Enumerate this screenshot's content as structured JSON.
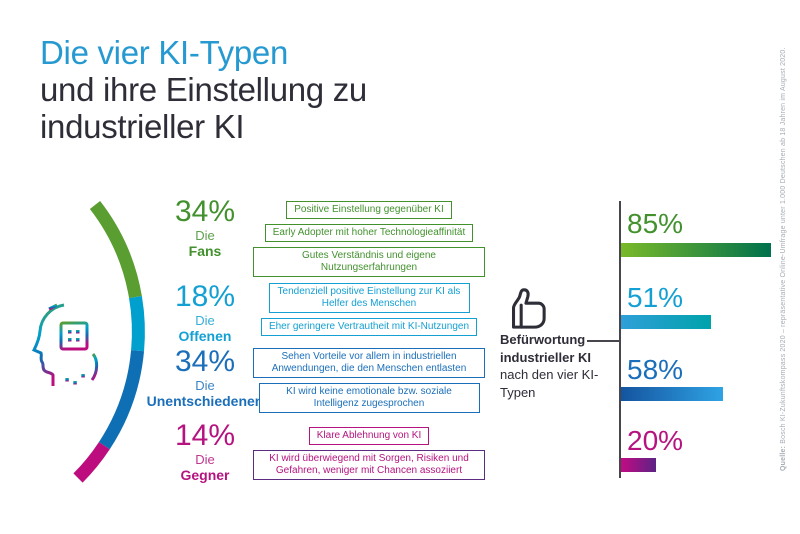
{
  "header": {
    "title_accent": "Die vier KI-Typen",
    "title_rest_line1": "und ihre Einstellung zu",
    "title_rest_line2": "industrieller KI"
  },
  "groups": [
    {
      "pct": "34%",
      "prefix": "Die",
      "name": "Fans",
      "color": "#42912d",
      "boxes": [
        "Positive Einstellung gegenüber KI",
        "Early Adopter mit hoher Technologieaffinität",
        "Gutes Verständnis und eigene Nutzungserfahrungen"
      ]
    },
    {
      "pct": "18%",
      "prefix": "Die",
      "name": "Offenen",
      "color": "#14a0d3",
      "boxes": [
        "Tendenziell positive Einstellung zur KI als Helfer des Menschen",
        "Eher geringere Vertrautheit mit KI-Nutzungen"
      ]
    },
    {
      "pct": "34%",
      "prefix": "Die",
      "name": "Unentschiedenen",
      "color": "#1b6fba",
      "boxes": [
        "Sehen Vorteile vor allem in industriellen Anwendungen, die den Menschen entlasten",
        "KI wird keine emotionale bzw. soziale Intelligenz zugesprochen"
      ]
    },
    {
      "pct": "14%",
      "prefix": "Die",
      "name": "Gegner",
      "color": "#b5137f",
      "boxes": [
        "Klare Ablehnung von KI",
        "KI wird überwiegend mit Sorgen, Risiken und Gefahren, weniger mit Chancen assoziiert"
      ]
    }
  ],
  "approval": {
    "bold": "Befürwortung industrieller KI",
    "normal": " nach den vier KI-Typen"
  },
  "chart_data": [
    {
      "type": "pie",
      "variant": "arc-segments",
      "title": "Die vier KI-Typen (Anteile)",
      "categories": [
        "Die Fans",
        "Die Offenen",
        "Die Unentschiedenen",
        "Die Gegner"
      ],
      "values": [
        34,
        18,
        34,
        14
      ],
      "unit": "%",
      "colors": [
        "#5a9e32",
        "#00a0ce",
        "#0f6fb4",
        "#bc0c7d"
      ],
      "legend_position": "left-column"
    },
    {
      "type": "bar",
      "orientation": "horizontal",
      "title": "Befürwortung industrieller KI nach den vier KI-Typen",
      "categories": [
        "Die Fans",
        "Die Offenen",
        "Die Unentschiedenen",
        "Die Gegner"
      ],
      "values": [
        85,
        51,
        58,
        20
      ],
      "labels": [
        "85%",
        "51%",
        "58%",
        "20%"
      ],
      "unit": "%",
      "xlim": [
        0,
        100
      ],
      "grid": false,
      "bar_gradients": [
        [
          "#79b929",
          "#00714d"
        ],
        [
          "#2f9fd8",
          "#00a2ab"
        ],
        [
          "#14549f",
          "#2fa3e4"
        ],
        [
          "#c20b83",
          "#5c2385"
        ]
      ]
    }
  ],
  "source": {
    "label": "Quelle:",
    "text": " Bosch KI-Zukunftskompass 2020 – repräsentative Online-Umfrage unter 1.000 Deutschen ab 18 Jahren im August 2020."
  },
  "colors": {
    "title_accent": "#2699d1",
    "text_dark": "#2e2e38",
    "green": "#42912d",
    "cyan": "#14a0d3",
    "blue": "#1b6fba",
    "magenta": "#b5137f",
    "purple": "#5c2c83",
    "axis": "#46464e",
    "source_gray": "#a7acb4"
  }
}
